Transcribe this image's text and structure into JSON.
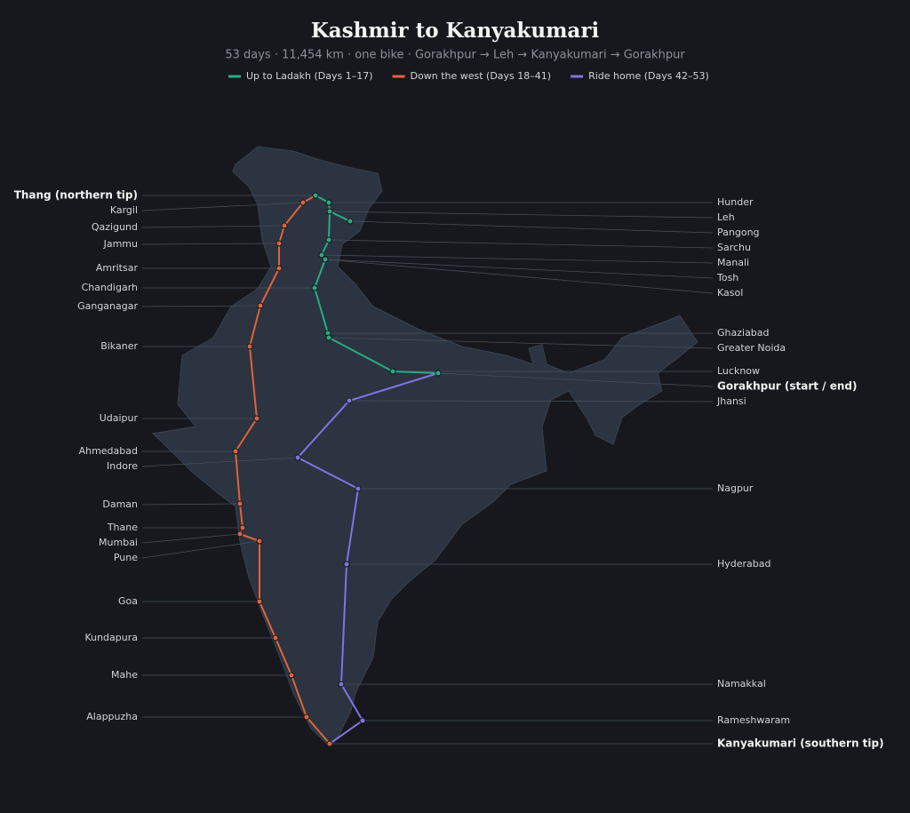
{
  "title": "Kashmir to Kanyakumari",
  "subtitle": "53 days  ·  11,454 km  ·  one bike  ·  Gorakhpur → Leh → Kanyakumari → Gorakhpur",
  "legend": [
    {
      "name": "Up to Ladakh (Days 1–17)",
      "color": "#2bab82"
    },
    {
      "name": "Down the west (Days 18–41)",
      "color": "#e0633a"
    },
    {
      "name": "Ride home (Days 42–53)",
      "color": "#7f74e3"
    }
  ],
  "cities": [
    {
      "name": "Thang (northern tip)",
      "side": "left",
      "emphasis": true
    },
    {
      "name": "Kargil",
      "side": "left"
    },
    {
      "name": "Qazigund",
      "side": "left"
    },
    {
      "name": "Jammu",
      "side": "left"
    },
    {
      "name": "Amritsar",
      "side": "left"
    },
    {
      "name": "Chandigarh",
      "side": "left"
    },
    {
      "name": "Ganganagar",
      "side": "left"
    },
    {
      "name": "Bikaner",
      "side": "left"
    },
    {
      "name": "Udaipur",
      "side": "left"
    },
    {
      "name": "Ahmedabad",
      "side": "left"
    },
    {
      "name": "Indore",
      "side": "left"
    },
    {
      "name": "Daman",
      "side": "left"
    },
    {
      "name": "Thane",
      "side": "left"
    },
    {
      "name": "Mumbai",
      "side": "left"
    },
    {
      "name": "Pune",
      "side": "left"
    },
    {
      "name": "Goa",
      "side": "left"
    },
    {
      "name": "Kundapura",
      "side": "left"
    },
    {
      "name": "Mahe",
      "side": "left"
    },
    {
      "name": "Alappuzha",
      "side": "left"
    },
    {
      "name": "Hunder",
      "side": "right"
    },
    {
      "name": "Leh",
      "side": "right"
    },
    {
      "name": "Pangong",
      "side": "right"
    },
    {
      "name": "Sarchu",
      "side": "right"
    },
    {
      "name": "Manali",
      "side": "right"
    },
    {
      "name": "Tosh",
      "side": "right"
    },
    {
      "name": "Kasol",
      "side": "right"
    },
    {
      "name": "Ghaziabad",
      "side": "right"
    },
    {
      "name": "Greater Noida",
      "side": "right"
    },
    {
      "name": "Lucknow",
      "side": "right"
    },
    {
      "name": "Gorakhpur (start / end)",
      "side": "right",
      "emphasis": true
    },
    {
      "name": "Jhansi",
      "side": "right"
    },
    {
      "name": "Nagpur",
      "side": "right"
    },
    {
      "name": "Hyderabad",
      "side": "right"
    },
    {
      "name": "Namakkal",
      "side": "right"
    },
    {
      "name": "Rameshwaram",
      "side": "right"
    },
    {
      "name": "Kanyakumari (southern tip)",
      "side": "right",
      "emphasis": true
    }
  ]
}
